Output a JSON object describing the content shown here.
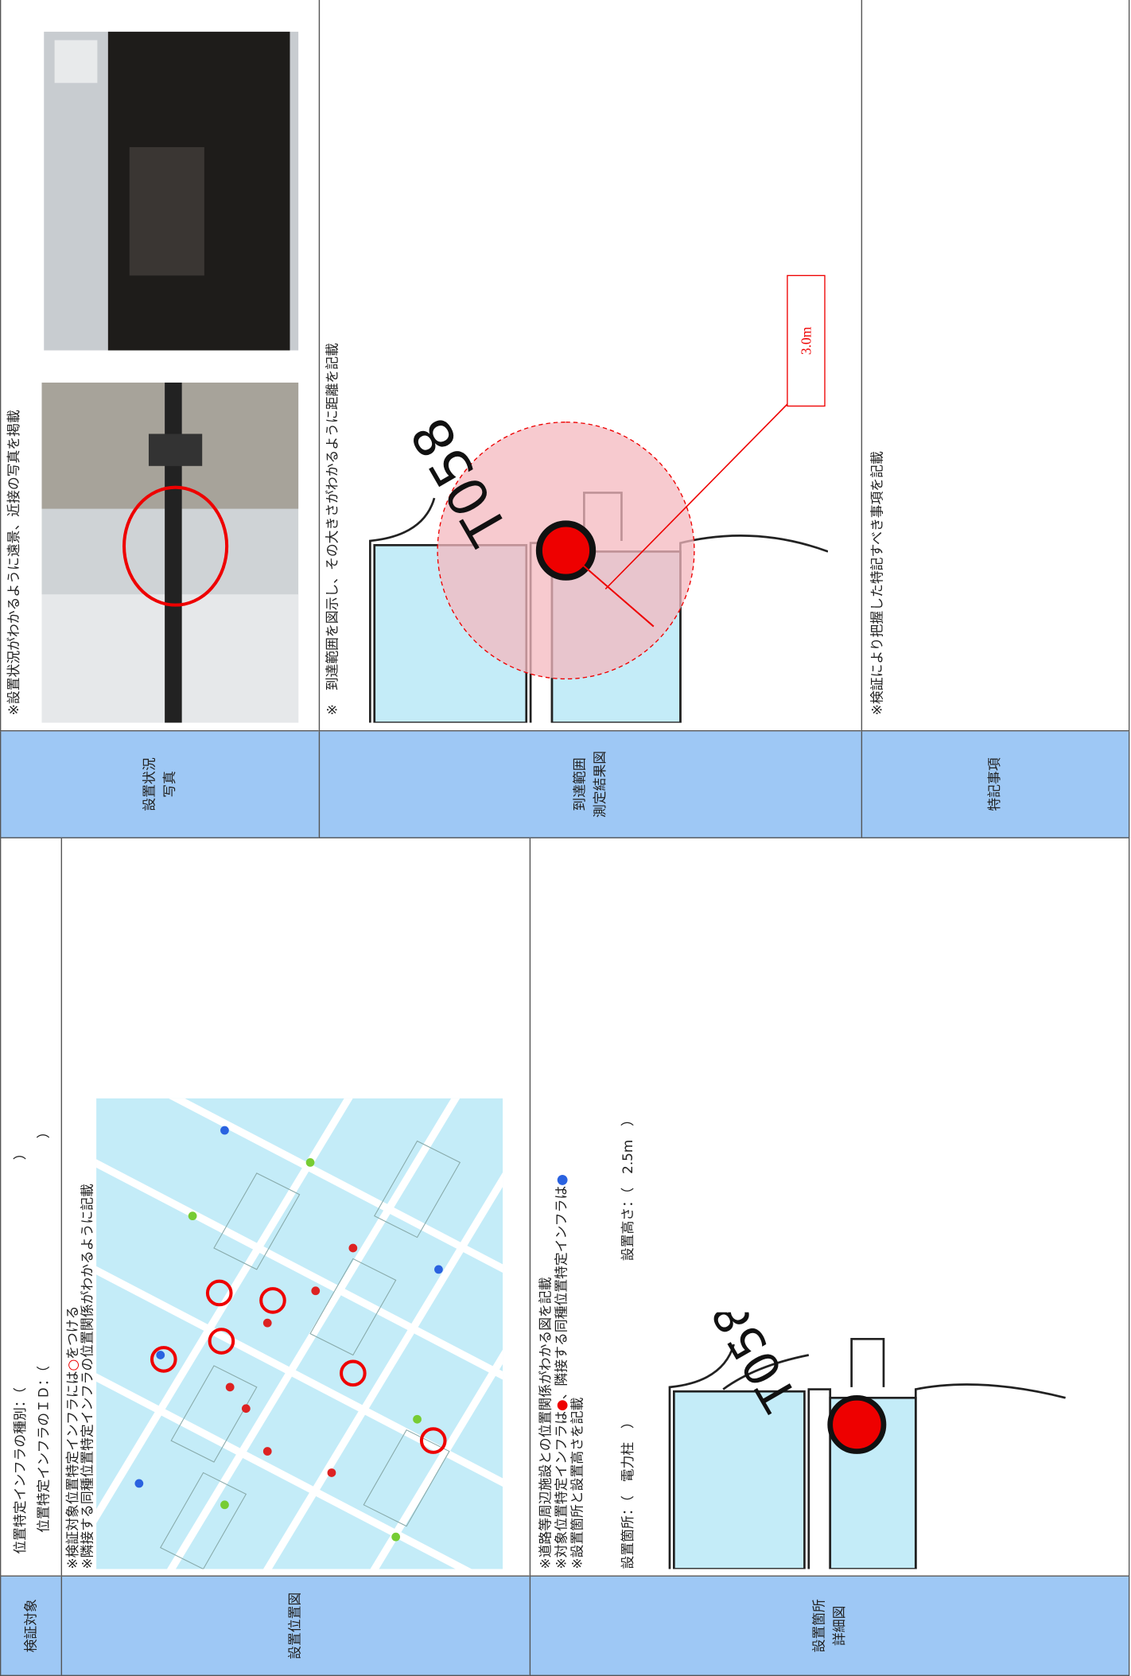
{
  "left_table": {
    "target_header": "検証対象",
    "target_lines": [
      "位置特定インフラの種別：（　　　　　　　　　　　　　　　　　）",
      "位置特定インフラのＩＤ：（　　　　　　　　　　　　　　　　　）"
    ],
    "location_header": "設置位置図",
    "location_notes": [
      [
        "※検証対象位置特定インフラには",
        "○",
        "をつける"
      ],
      [
        "※隣接する同種位置特定インフラの位置関係がわかるように記載"
      ]
    ],
    "detail_header": [
      "設置箇所",
      "詳細図"
    ],
    "detail_notes": [
      [
        "※道路等周辺施設との位置関係がわかる図を記載"
      ],
      [
        "※対象位置特定インフラは",
        "●",
        "、隣接する同種位置特定インフラは",
        "●"
      ],
      [
        "※設置箇所と設置高さを記載"
      ]
    ],
    "place": "設置箇所：（　電力柱　）",
    "height": "設置高さ：（　2.5m　）",
    "detail_label": "T058"
  },
  "right_table": {
    "photo_header": [
      "設置状況",
      "写真"
    ],
    "photo_note": "※設置状況がわかるように遠景、近接の写真を掲載",
    "range_header": [
      "到達範囲",
      "測定結果図"
    ],
    "range_note": "※　到達範囲を図示し、その大きさがわかるように距離を記載",
    "range_label": "T058",
    "range_distance": "3.0m",
    "notes_header": "特記事項",
    "notes_note": "※検証により把握した特記すべき事項を記載"
  }
}
